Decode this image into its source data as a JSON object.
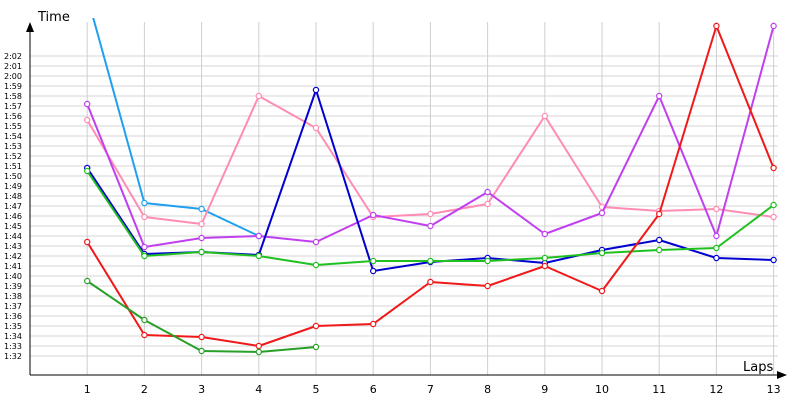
{
  "chart_data": {
    "type": "line",
    "xlabel": "Laps",
    "ylabel": "Time",
    "grid": true,
    "legend": "none",
    "x": [
      1,
      2,
      3,
      4,
      5,
      6,
      7,
      8,
      9,
      10,
      11,
      12,
      13
    ],
    "xlim": [
      0,
      13
    ],
    "ylim_seconds": [
      91,
      125
    ],
    "y_ticks": [
      "1:32",
      "1:33",
      "1:34",
      "1:35",
      "1:36",
      "1:37",
      "1:38",
      "1:39",
      "1:40",
      "1:41",
      "1:42",
      "1:43",
      "1:44",
      "1:45",
      "1:46",
      "1:47",
      "1:48",
      "1:49",
      "1:50",
      "1:51",
      "1:52",
      "1:53",
      "1:54",
      "1:55",
      "1:56",
      "1:57",
      "1:58",
      "1:59",
      "2:00",
      "2:01",
      "2:02"
    ],
    "series": [
      {
        "color": "#1ea0f0",
        "values": [
          "2:08.0",
          "1:47.3",
          "1:46.7",
          "1:44.0",
          null,
          null,
          null,
          null,
          null,
          null,
          null,
          null,
          null
        ]
      },
      {
        "color": "#ff8cb4",
        "values": [
          "1:55.6",
          "1:45.9",
          "1:45.2",
          "1:58.0",
          "1:54.8",
          "1:45.9",
          "1:46.2",
          "1:47.2",
          "1:56.0",
          "1:46.9",
          "1:46.5",
          "1:46.7",
          "1:45.9"
        ]
      },
      {
        "color": "#c040f0",
        "values": [
          "1:57.2",
          "1:42.9",
          "1:43.8",
          "1:44.0",
          "1:43.4",
          "1:46.1",
          "1:45.0",
          "1:48.4",
          "1:44.2",
          "1:46.3",
          "1:58.0",
          "1:44.0",
          "2:05.0"
        ]
      },
      {
        "color": "#0000d0",
        "values": [
          "1:50.8",
          "1:42.2",
          "1:42.4",
          "1:42.1",
          "1:58.6",
          "1:40.5",
          "1:41.4",
          "1:41.8",
          "1:41.3",
          "1:42.6",
          "1:43.6",
          "1:41.8",
          "1:41.6"
        ]
      },
      {
        "color": "#20c020",
        "values": [
          "1:50.5",
          "1:42.0",
          "1:42.4",
          "1:42.0",
          "1:41.1",
          "1:41.5",
          "1:41.5",
          "1:41.5",
          "1:41.8",
          "1:42.3",
          "1:42.6",
          "1:42.8",
          "1:47.1"
        ]
      },
      {
        "color": "#f01818",
        "values": [
          "1:43.4",
          "1:34.1",
          "1:33.9",
          "1:33.0",
          "1:35.0",
          "1:35.2",
          "1:39.4",
          "1:39.0",
          "1:41.0",
          "1:38.5",
          "1:46.2",
          "2:05.0",
          "1:50.8"
        ]
      },
      {
        "color": "#28a028",
        "values": [
          "1:39.5",
          "1:35.6",
          "1:32.5",
          "1:32.4",
          "1:32.9",
          null,
          null,
          null,
          null,
          null,
          null,
          null,
          null
        ]
      }
    ]
  }
}
